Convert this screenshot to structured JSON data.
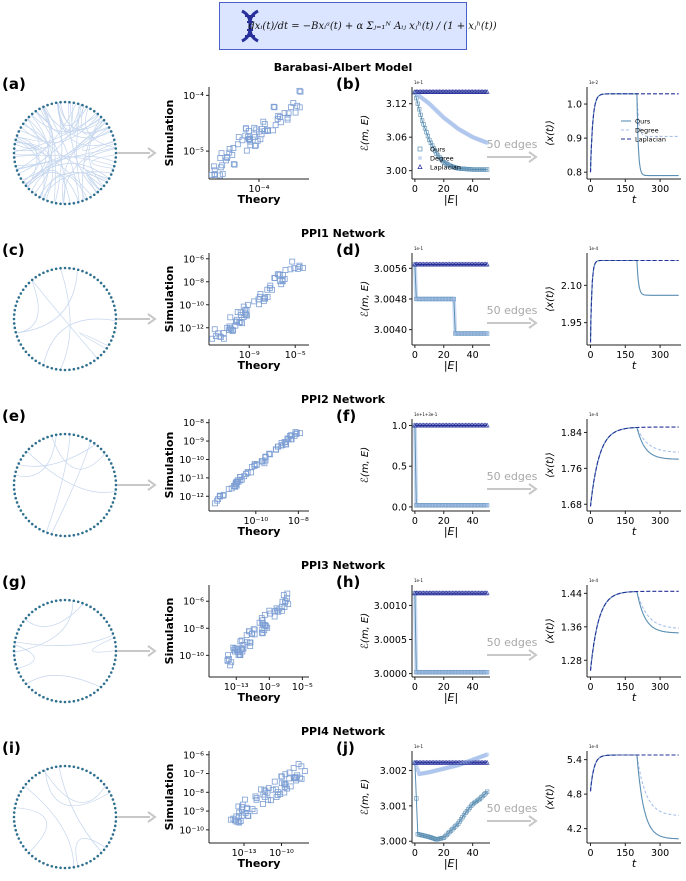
{
  "equation": {
    "text": "dxᵢ(t)/dt = −Bxᵢᵃ(t) + α Σⱼ₌₁ᴺ Aᵢⱼ xⱼʰ(t) / (1 + xⱼʰ(t))"
  },
  "colors": {
    "ours": "#5b8fb3",
    "degree": "#a9c2ec",
    "laplacian": "#27309a",
    "scatter": "#7d9fd4",
    "arrow": "#c8c8c8",
    "network_edge": "#c5d6ee",
    "network_node": "#2f6f8f",
    "equation_bg": "#dbe5ff",
    "equation_border": "#4b5fc9"
  },
  "icons": {
    "equation_icon": "dna-icon"
  },
  "arrow_label": "50 edges",
  "legend": [
    "Ours",
    "Degree",
    "Laplacian"
  ],
  "rows": [
    {
      "title": "Barabasi-Albert Model",
      "letters": [
        "(a)",
        "(b)"
      ]
    },
    {
      "title": "PPI1 Network",
      "letters": [
        "(c)",
        "(d)"
      ]
    },
    {
      "title": "PPI2 Network",
      "letters": [
        "(e)",
        "(f)"
      ]
    },
    {
      "title": "PPI3 Network",
      "letters": [
        "(g)",
        "(h)"
      ]
    },
    {
      "title": "PPI4 Network",
      "letters": [
        "(i)",
        "(j)"
      ]
    }
  ],
  "chart_data": [
    {
      "type": "scatter",
      "row": 0,
      "xlabel": "Theory",
      "ylabel": "Simulation",
      "log": true,
      "xlim": [
        -5,
        -3
      ],
      "ylim": [
        -5.5,
        -3.85
      ],
      "xticks": [
        {
          "v": -4,
          "label": "10⁻⁴"
        }
      ],
      "yticks": [
        {
          "v": -5,
          "label": "10⁻⁵"
        },
        {
          "v": -4,
          "label": "10⁻⁴"
        }
      ],
      "trend": [
        -4.95,
        -5.4,
        -3.2,
        -4.05
      ],
      "spread": 0.2
    },
    {
      "type": "line",
      "row": 0,
      "xlabel": "|E|",
      "ylabel": "ℰ(m, E)",
      "multiplier": "1e-1",
      "xlim": [
        -2,
        52
      ],
      "ylim": [
        2.985,
        3.15
      ],
      "xticks": [
        0,
        20,
        40
      ],
      "yticks": [
        {
          "v": 3.0,
          "label": "3.00"
        },
        {
          "v": 3.06,
          "label": "3.06"
        },
        {
          "v": 3.12,
          "label": "3.12"
        }
      ],
      "ours": [
        [
          0,
          3.14
        ],
        [
          5,
          3.09
        ],
        [
          10,
          3.055
        ],
        [
          15,
          3.03
        ],
        [
          20,
          3.015
        ],
        [
          25,
          3.008
        ],
        [
          30,
          3.004
        ],
        [
          40,
          3.002
        ],
        [
          50,
          3.002
        ]
      ],
      "degree": [
        [
          0,
          3.14
        ],
        [
          10,
          3.12
        ],
        [
          20,
          3.095
        ],
        [
          30,
          3.075
        ],
        [
          40,
          3.06
        ],
        [
          50,
          3.05
        ]
      ],
      "laplacian": [
        [
          0,
          3.141
        ],
        [
          50,
          3.141
        ]
      ],
      "legend": true
    },
    {
      "type": "line",
      "row": 0,
      "xlabel": "t",
      "ylabel": "⟨x(t)⟩",
      "multiplier": "1e-2",
      "xlim": [
        -15,
        390
      ],
      "ylim": [
        0.78,
        1.05
      ],
      "xticks": [
        0,
        150,
        300
      ],
      "yticks": [
        {
          "v": 0.8,
          "label": "0.8"
        },
        {
          "v": 0.9,
          "label": "0.9"
        },
        {
          "v": 1.0,
          "label": "1.0"
        }
      ],
      "start": 0.8,
      "plateau": 1.03,
      "ours_end": 0.79,
      "degree_end": 0.905,
      "tau": 10,
      "tau2": 6,
      "legend": true
    },
    {
      "type": "scatter",
      "row": 1,
      "xlabel": "Theory",
      "ylabel": "Simulation",
      "log": true,
      "xlim": [
        -12.5,
        -3.8
      ],
      "ylim": [
        -13.5,
        -5.5
      ],
      "xticks": [
        {
          "v": -9,
          "label": "10⁻⁹"
        },
        {
          "v": -5,
          "label": "10⁻⁵"
        }
      ],
      "yticks": [
        {
          "v": -12,
          "label": "10⁻¹²"
        },
        {
          "v": -10,
          "label": "10⁻¹⁰"
        },
        {
          "v": -8,
          "label": "10⁻⁸"
        },
        {
          "v": -6,
          "label": "10⁻⁶"
        }
      ],
      "trend": [
        -12,
        -13,
        -4.2,
        -6.0
      ],
      "spread": 0.6
    },
    {
      "type": "line",
      "row": 1,
      "xlabel": "|E|",
      "ylabel": "ℰ(m, E)",
      "multiplier": "1e-1",
      "xlim": [
        -2,
        52
      ],
      "ylim": [
        3.0036,
        3.006
      ],
      "xticks": [
        0,
        20,
        40
      ],
      "yticks": [
        {
          "v": 3.004,
          "label": "3.0040"
        },
        {
          "v": 3.0048,
          "label": "3.0048"
        },
        {
          "v": 3.0056,
          "label": "3.0056"
        }
      ],
      "ours": [
        [
          0,
          3.0057
        ],
        [
          1,
          3.0048
        ],
        [
          27,
          3.0048
        ],
        [
          28,
          3.0039
        ],
        [
          50,
          3.0039
        ]
      ],
      "degree": [
        [
          0,
          3.0057
        ],
        [
          1,
          3.0048
        ],
        [
          27,
          3.0048
        ],
        [
          28,
          3.0039
        ],
        [
          50,
          3.0039
        ]
      ],
      "laplacian": [
        [
          0,
          3.0057
        ],
        [
          50,
          3.0057
        ]
      ],
      "legend": false
    },
    {
      "type": "line",
      "row": 1,
      "xlabel": "t",
      "ylabel": "⟨x(t)⟩",
      "multiplier": "1e-4",
      "xlim": [
        -15,
        390
      ],
      "ylim": [
        1.86,
        2.23
      ],
      "xticks": [
        0,
        150,
        300
      ],
      "yticks": [
        {
          "v": 1.95,
          "label": "1.95"
        },
        {
          "v": 2.1,
          "label": "2.10"
        }
      ],
      "start": 1.87,
      "plateau": 2.2,
      "ours_end": 2.06,
      "degree_end": 2.2,
      "tau": 6,
      "tau2": 7,
      "legend": false
    },
    {
      "type": "scatter",
      "row": 2,
      "xlabel": "Theory",
      "ylabel": "Simulation",
      "log": true,
      "xlim": [
        -12.2,
        -7.5
      ],
      "ylim": [
        -12.8,
        -7.8
      ],
      "xticks": [
        {
          "v": -10,
          "label": "10⁻¹⁰"
        },
        {
          "v": -8,
          "label": "10⁻⁸"
        }
      ],
      "yticks": [
        {
          "v": -12,
          "label": "10⁻¹²"
        },
        {
          "v": -11,
          "label": "10⁻¹¹"
        },
        {
          "v": -10,
          "label": "10⁻¹⁰"
        },
        {
          "v": -9,
          "label": "10⁻⁹"
        },
        {
          "v": -8,
          "label": "10⁻⁸"
        }
      ],
      "trend": [
        -12.0,
        -12.3,
        -7.9,
        -8.4
      ],
      "spread": 0.15
    },
    {
      "type": "line",
      "row": 2,
      "xlabel": "|E|",
      "ylabel": "ℰ(m, E)",
      "multiplier": "1e+1+3e-1",
      "xlim": [
        -2,
        52
      ],
      "ylim": [
        -0.05,
        1.08
      ],
      "xticks": [
        0,
        20,
        40
      ],
      "yticks": [
        {
          "v": 0.0,
          "label": "0.0"
        },
        {
          "v": 0.5,
          "label": "0.5"
        },
        {
          "v": 1.0,
          "label": "1.0"
        }
      ],
      "ours": [
        [
          0,
          1.0
        ],
        [
          1,
          0.02
        ],
        [
          50,
          0.02
        ]
      ],
      "degree": [
        [
          0,
          1.0
        ],
        [
          1,
          0.02
        ],
        [
          50,
          0.02
        ]
      ],
      "laplacian": [
        [
          0,
          1.0
        ],
        [
          50,
          1.0
        ]
      ],
      "legend": false
    },
    {
      "type": "line",
      "row": 2,
      "xlabel": "t",
      "ylabel": "⟨x(t)⟩",
      "multiplier": "1e-4",
      "xlim": [
        -15,
        390
      ],
      "ylim": [
        1.665,
        1.87
      ],
      "xticks": [
        0,
        150,
        300
      ],
      "yticks": [
        {
          "v": 1.68,
          "label": "1.68"
        },
        {
          "v": 1.76,
          "label": "1.76"
        },
        {
          "v": 1.84,
          "label": "1.84"
        }
      ],
      "start": 1.675,
      "plateau": 1.852,
      "ours_end": 1.78,
      "degree_end": 1.795,
      "tau": 38,
      "tau2": 35,
      "legend": false
    },
    {
      "type": "scatter",
      "row": 3,
      "xlabel": "Theory",
      "ylabel": "Simulation",
      "log": true,
      "xlim": [
        -16.3,
        -4.2
      ],
      "ylim": [
        -11.6,
        -4.8
      ],
      "xticks": [
        {
          "v": -13,
          "label": "10⁻¹³"
        },
        {
          "v": -9,
          "label": "10⁻⁹"
        },
        {
          "v": -5,
          "label": "10⁻⁵"
        }
      ],
      "yticks": [
        {
          "v": -10,
          "label": "10⁻¹⁰"
        },
        {
          "v": -8,
          "label": "10⁻⁸"
        },
        {
          "v": -6,
          "label": "10⁻⁶"
        }
      ],
      "trend": [
        -14,
        -10.5,
        -6.5,
        -5.6
      ],
      "spread": 0.5
    },
    {
      "type": "line",
      "row": 3,
      "xlabel": "|E|",
      "ylabel": "ℰ(m, E)",
      "multiplier": "1e-1",
      "xlim": [
        -2,
        52
      ],
      "ylim": [
        2.99995,
        3.0013
      ],
      "xticks": [
        0,
        20,
        40
      ],
      "yticks": [
        {
          "v": 3.0,
          "label": "3.0000"
        },
        {
          "v": 3.0005,
          "label": "3.0005"
        },
        {
          "v": 3.001,
          "label": "3.0010"
        }
      ],
      "ours": [
        [
          0,
          3.00118
        ],
        [
          1,
          3.00002
        ],
        [
          50,
          3.00002
        ]
      ],
      "degree": [
        [
          0,
          3.00118
        ],
        [
          1,
          3.00002
        ],
        [
          50,
          3.00002
        ]
      ],
      "laplacian": [
        [
          0,
          3.00118
        ],
        [
          50,
          3.00118
        ]
      ],
      "legend": false
    },
    {
      "type": "line",
      "row": 3,
      "xlabel": "t",
      "ylabel": "⟨x(t)⟩",
      "multiplier": "1e-4",
      "xlim": [
        -15,
        390
      ],
      "ylim": [
        1.24,
        1.46
      ],
      "xticks": [
        0,
        150,
        300
      ],
      "yticks": [
        {
          "v": 1.28,
          "label": "1.28"
        },
        {
          "v": 1.36,
          "label": "1.36"
        },
        {
          "v": 1.44,
          "label": "1.44"
        }
      ],
      "start": 1.255,
      "plateau": 1.445,
      "ours_end": 1.345,
      "degree_end": 1.355,
      "tau": 35,
      "tau2": 35,
      "legend": false
    },
    {
      "type": "scatter",
      "row": 4,
      "xlabel": "Theory",
      "ylabel": "Simulation",
      "log": true,
      "xlim": [
        -15.8,
        -7.8
      ],
      "ylim": [
        -10.7,
        -5.8
      ],
      "xticks": [
        {
          "v": -13,
          "label": "10⁻¹³"
        },
        {
          "v": -10,
          "label": "10⁻¹⁰"
        }
      ],
      "yticks": [
        {
          "v": -10,
          "label": "10⁻¹⁰"
        },
        {
          "v": -9,
          "label": "10⁻⁹"
        },
        {
          "v": -8,
          "label": "10⁻⁸"
        },
        {
          "v": -7,
          "label": "10⁻⁷"
        },
        {
          "v": -6,
          "label": "10⁻⁶"
        }
      ],
      "trend": [
        -14,
        -9.4,
        -8.3,
        -6.8
      ],
      "spread": 0.45
    },
    {
      "type": "line",
      "row": 4,
      "xlabel": "|E|",
      "ylabel": "ℰ(m, E)",
      "multiplier": "1e-1",
      "xlim": [
        -2,
        52
      ],
      "ylim": [
        2.99995,
        3.00255
      ],
      "xticks": [
        0,
        20,
        40
      ],
      "yticks": [
        {
          "v": 3.0,
          "label": "3.000"
        },
        {
          "v": 3.001,
          "label": "3.001"
        },
        {
          "v": 3.002,
          "label": "3.002"
        }
      ],
      "ours": [
        [
          0,
          3.00222
        ],
        [
          2,
          3.0002
        ],
        [
          10,
          3.00012
        ],
        [
          15,
          3.00005
        ],
        [
          20,
          3.0001
        ],
        [
          25,
          3.0003
        ],
        [
          30,
          3.0005
        ],
        [
          35,
          3.0008
        ],
        [
          40,
          3.00105
        ],
        [
          45,
          3.0012
        ],
        [
          50,
          3.0014
        ]
      ],
      "degree": [
        [
          0,
          3.00222
        ],
        [
          3,
          3.0019
        ],
        [
          10,
          3.00195
        ],
        [
          20,
          3.00205
        ],
        [
          30,
          3.00215
        ],
        [
          40,
          3.0023
        ],
        [
          50,
          3.00245
        ]
      ],
      "laplacian": [
        [
          0,
          3.00222
        ],
        [
          50,
          3.00222
        ]
      ],
      "legend": false
    },
    {
      "type": "line",
      "row": 4,
      "xlabel": "t",
      "ylabel": "⟨x(t)⟩",
      "multiplier": "1e-4",
      "xlim": [
        -15,
        390
      ],
      "ylim": [
        3.95,
        5.55
      ],
      "xticks": [
        0,
        150,
        300
      ],
      "yticks": [
        {
          "v": 4.2,
          "label": "4.2"
        },
        {
          "v": 4.8,
          "label": "4.8"
        },
        {
          "v": 5.4,
          "label": "5.4"
        }
      ],
      "start": 4.85,
      "plateau": 5.48,
      "ours_end": 4.02,
      "degree_end": 4.42,
      "tau": 15,
      "tau2": 30,
      "legend": false
    }
  ]
}
